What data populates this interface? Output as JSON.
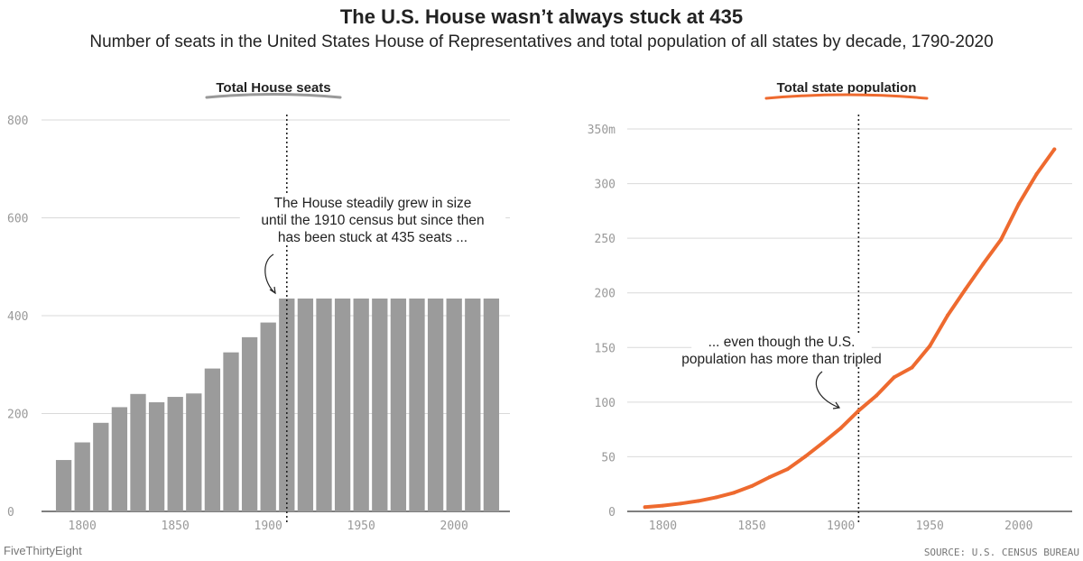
{
  "header": {
    "title": "The U.S. House wasn’t always stuck at 435",
    "subtitle": "Number of seats in the United States House of Representatives and total population of all states by decade, 1790-2020"
  },
  "footer": {
    "brand": "FiveThirtyEight",
    "source": "SOURCE: U.S. CENSUS BUREAU"
  },
  "colors": {
    "bar": "#9b9b9b",
    "line": "#ee6a2f",
    "grid": "#d9d9d9",
    "axis": "#333333",
    "marker": "#222222"
  },
  "chart_data": [
    {
      "type": "bar",
      "title": "Total House seats",
      "x": [
        1790,
        1800,
        1810,
        1820,
        1830,
        1840,
        1850,
        1860,
        1870,
        1880,
        1890,
        1900,
        1910,
        1920,
        1930,
        1940,
        1950,
        1960,
        1970,
        1980,
        1990,
        2000,
        2010,
        2020
      ],
      "values": [
        105,
        141,
        181,
        213,
        240,
        223,
        234,
        241,
        292,
        325,
        356,
        386,
        435,
        435,
        435,
        435,
        435,
        435,
        435,
        435,
        435,
        435,
        435,
        435
      ],
      "xlim": [
        1780,
        2030
      ],
      "ylim": [
        0,
        800
      ],
      "yticks": [
        0,
        200,
        400,
        600,
        800
      ],
      "ytick_labels": [
        "0",
        "200",
        "400",
        "600",
        "800"
      ],
      "xticks": [
        1800,
        1850,
        1900,
        1950,
        2000
      ],
      "xtick_labels": [
        "1800",
        "1850",
        "1900",
        "1950",
        "2000"
      ],
      "marker_year": 1910,
      "annotation": [
        "The House steadily grew in size",
        "until the 1910 census but since then",
        "has been stuck at 435 seats ..."
      ]
    },
    {
      "type": "line",
      "title": "Total state population",
      "x": [
        1790,
        1800,
        1810,
        1820,
        1830,
        1840,
        1850,
        1860,
        1870,
        1880,
        1890,
        1900,
        1910,
        1920,
        1930,
        1940,
        1950,
        1960,
        1970,
        1980,
        1990,
        2000,
        2010,
        2020
      ],
      "values": [
        3.9,
        5.3,
        7.2,
        9.6,
        12.9,
        17.1,
        23.2,
        31.4,
        38.6,
        50.2,
        62.9,
        76.2,
        92.2,
        106.0,
        122.8,
        131.7,
        151.3,
        179.3,
        203.2,
        226.5,
        248.7,
        281.4,
        308.7,
        331.4
      ],
      "xlim": [
        1780,
        2030
      ],
      "ylim": [
        0,
        350
      ],
      "yticks": [
        0,
        50,
        100,
        150,
        200,
        250,
        300,
        350
      ],
      "ytick_labels": [
        "0",
        "50",
        "100",
        "150",
        "200",
        "250",
        "300",
        "350m"
      ],
      "xticks": [
        1800,
        1850,
        1900,
        1950,
        2000
      ],
      "xtick_labels": [
        "1800",
        "1850",
        "1900",
        "1950",
        "2000"
      ],
      "marker_year": 1910,
      "annotation": [
        "... even though the U.S.",
        "population has more than tripled"
      ]
    }
  ]
}
